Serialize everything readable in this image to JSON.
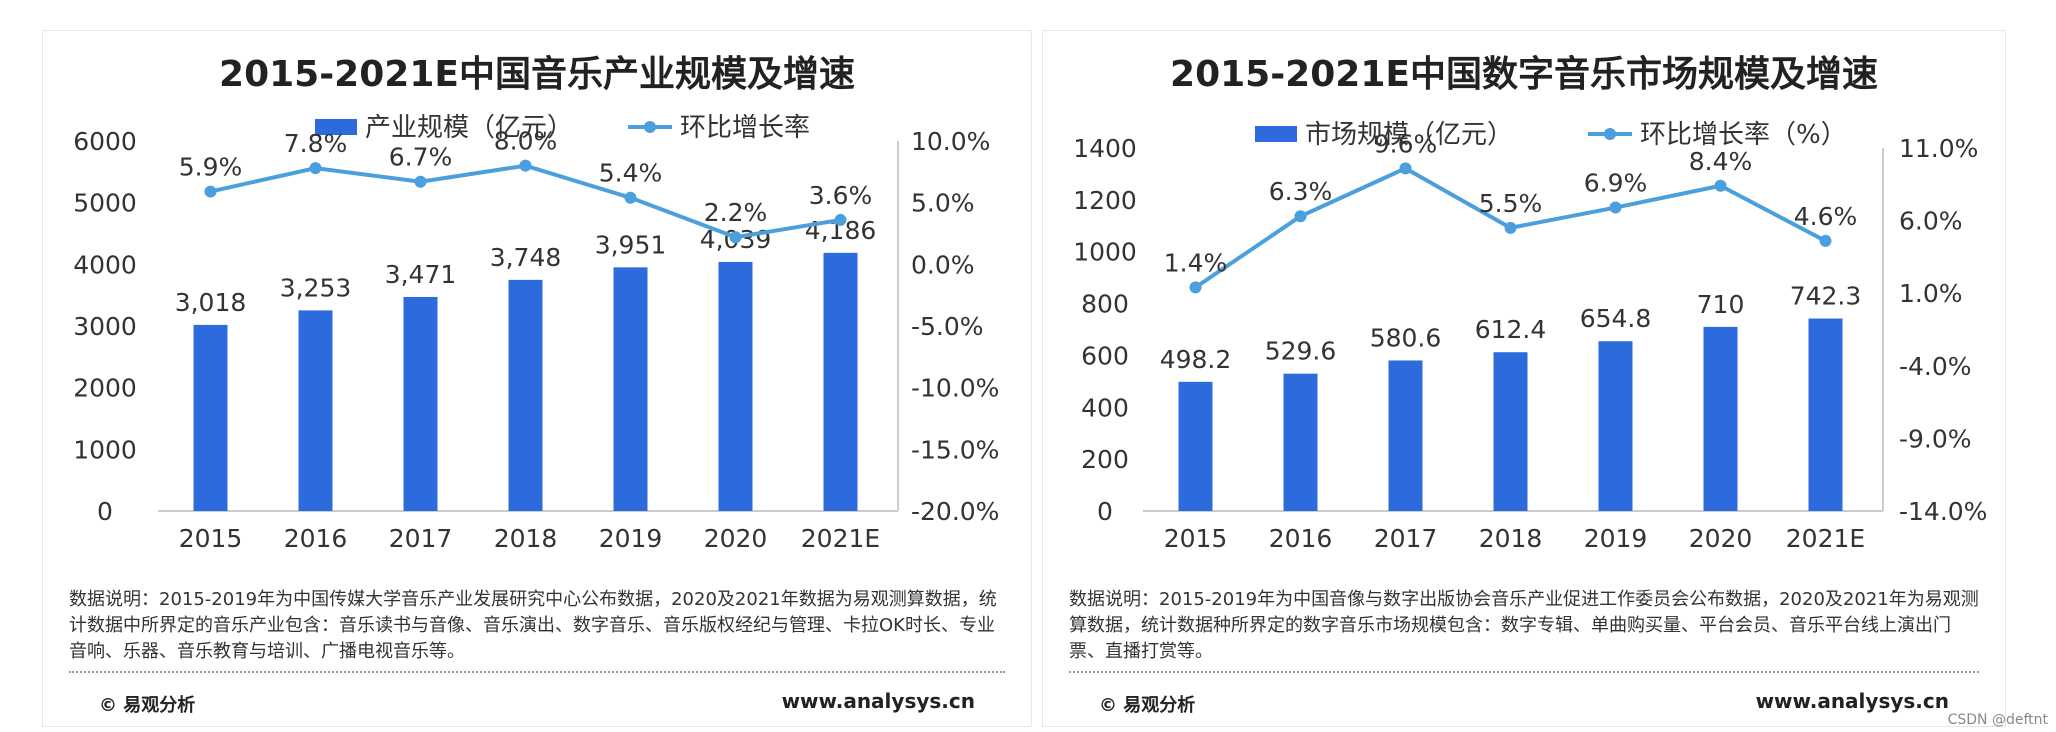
{
  "charts": [
    {
      "title": "2015-2021E中国音乐产业规模及增速",
      "legend": {
        "bar": "产业规模（亿元）",
        "line": "环比增长率"
      },
      "y_left_ticks": [
        "0",
        "1000",
        "2000",
        "3000",
        "4000",
        "5000",
        "6000"
      ],
      "y_right_ticks": [
        "-20.0%",
        "-15.0%",
        "-10.0%",
        "-5.0%",
        "0.0%",
        "5.0%",
        "10.0%"
      ],
      "bar_labels": [
        "3,018",
        "3,253",
        "3,471",
        "3,748",
        "3,951",
        "4,039",
        "4,186"
      ],
      "line_labels": [
        "5.9%",
        "7.8%",
        "6.7%",
        "8.0%",
        "5.4%",
        "2.2%",
        "3.6%"
      ],
      "note": "数据说明：2015-2019年为中国传媒大学音乐产业发展研究中心公布数据，2020及2021年数据为易观测算数据，统计数据中所界定的音乐产业包含：音乐读书与音像、音乐演出、数字音乐、音乐版权经纪与管理、卡拉OK时长、专业音响、乐器、音乐教育与培训、广播电视音乐等。",
      "copyright": "© 易观分析",
      "website": "www.analysys.cn"
    },
    {
      "title": "2015-2021E中国数字音乐市场规模及增速",
      "legend": {
        "bar": "市场规模（亿元）",
        "line": "环比增长率（%）"
      },
      "y_left_ticks": [
        "0",
        "200",
        "400",
        "600",
        "800",
        "1000",
        "1200",
        "1400"
      ],
      "y_right_ticks": [
        "-14.0%",
        "-9.0%",
        "-4.0%",
        "1.0%",
        "6.0%",
        "11.0%"
      ],
      "bar_labels": [
        "498.2",
        "529.6",
        "580.6",
        "612.4",
        "654.8",
        "710",
        "742.3"
      ],
      "line_labels": [
        "1.4%",
        "6.3%",
        "9.6%",
        "5.5%",
        "6.9%",
        "8.4%",
        "4.6%"
      ],
      "note": "数据说明：2015-2019年为中国音像与数字出版协会音乐产业促进工作委员会公布数据，2020及2021年为易观测算数据，统计数据种所界定的数字音乐市场规模包含：数字专辑、单曲购买量、平台会员、音乐平台线上演出门票、直播打赏等。",
      "copyright": "© 易观分析",
      "website": "www.analysys.cn"
    }
  ],
  "watermark": "CSDN @deftnt",
  "colors": {
    "bar": "#2d6bdc",
    "line": "#4a9fdc",
    "grid": "#cccccc",
    "text": "#333333"
  },
  "chart_data": [
    {
      "type": "bar",
      "title": "2015-2021E中国音乐产业规模及增速",
      "categories": [
        "2015",
        "2016",
        "2017",
        "2018",
        "2019",
        "2020",
        "2021E"
      ],
      "series": [
        {
          "name": "产业规模（亿元）",
          "type": "bar",
          "axis": "left",
          "values": [
            3018,
            3253,
            3471,
            3748,
            3951,
            4039,
            4186
          ]
        },
        {
          "name": "环比增长率",
          "type": "line",
          "axis": "right",
          "values": [
            5.9,
            7.8,
            6.7,
            8.0,
            5.4,
            2.2,
            3.6
          ]
        }
      ],
      "ylim_left": [
        0,
        6000
      ],
      "ylim_right": [
        -20,
        10
      ],
      "legend": "top-center",
      "grid": false
    },
    {
      "type": "bar",
      "title": "2015-2021E中国数字音乐市场规模及增速",
      "categories": [
        "2015",
        "2016",
        "2017",
        "2018",
        "2019",
        "2020",
        "2021E"
      ],
      "series": [
        {
          "name": "市场规模（亿元）",
          "type": "bar",
          "axis": "left",
          "values": [
            498.2,
            529.6,
            580.6,
            612.4,
            654.8,
            710,
            742.3
          ]
        },
        {
          "name": "环比增长率（%）",
          "type": "line",
          "axis": "right",
          "values": [
            1.4,
            6.3,
            9.6,
            5.5,
            6.9,
            8.4,
            4.6
          ]
        }
      ],
      "ylim_left": [
        0,
        1400
      ],
      "ylim_right": [
        -14,
        11
      ],
      "legend": "top-center",
      "grid": false
    }
  ]
}
